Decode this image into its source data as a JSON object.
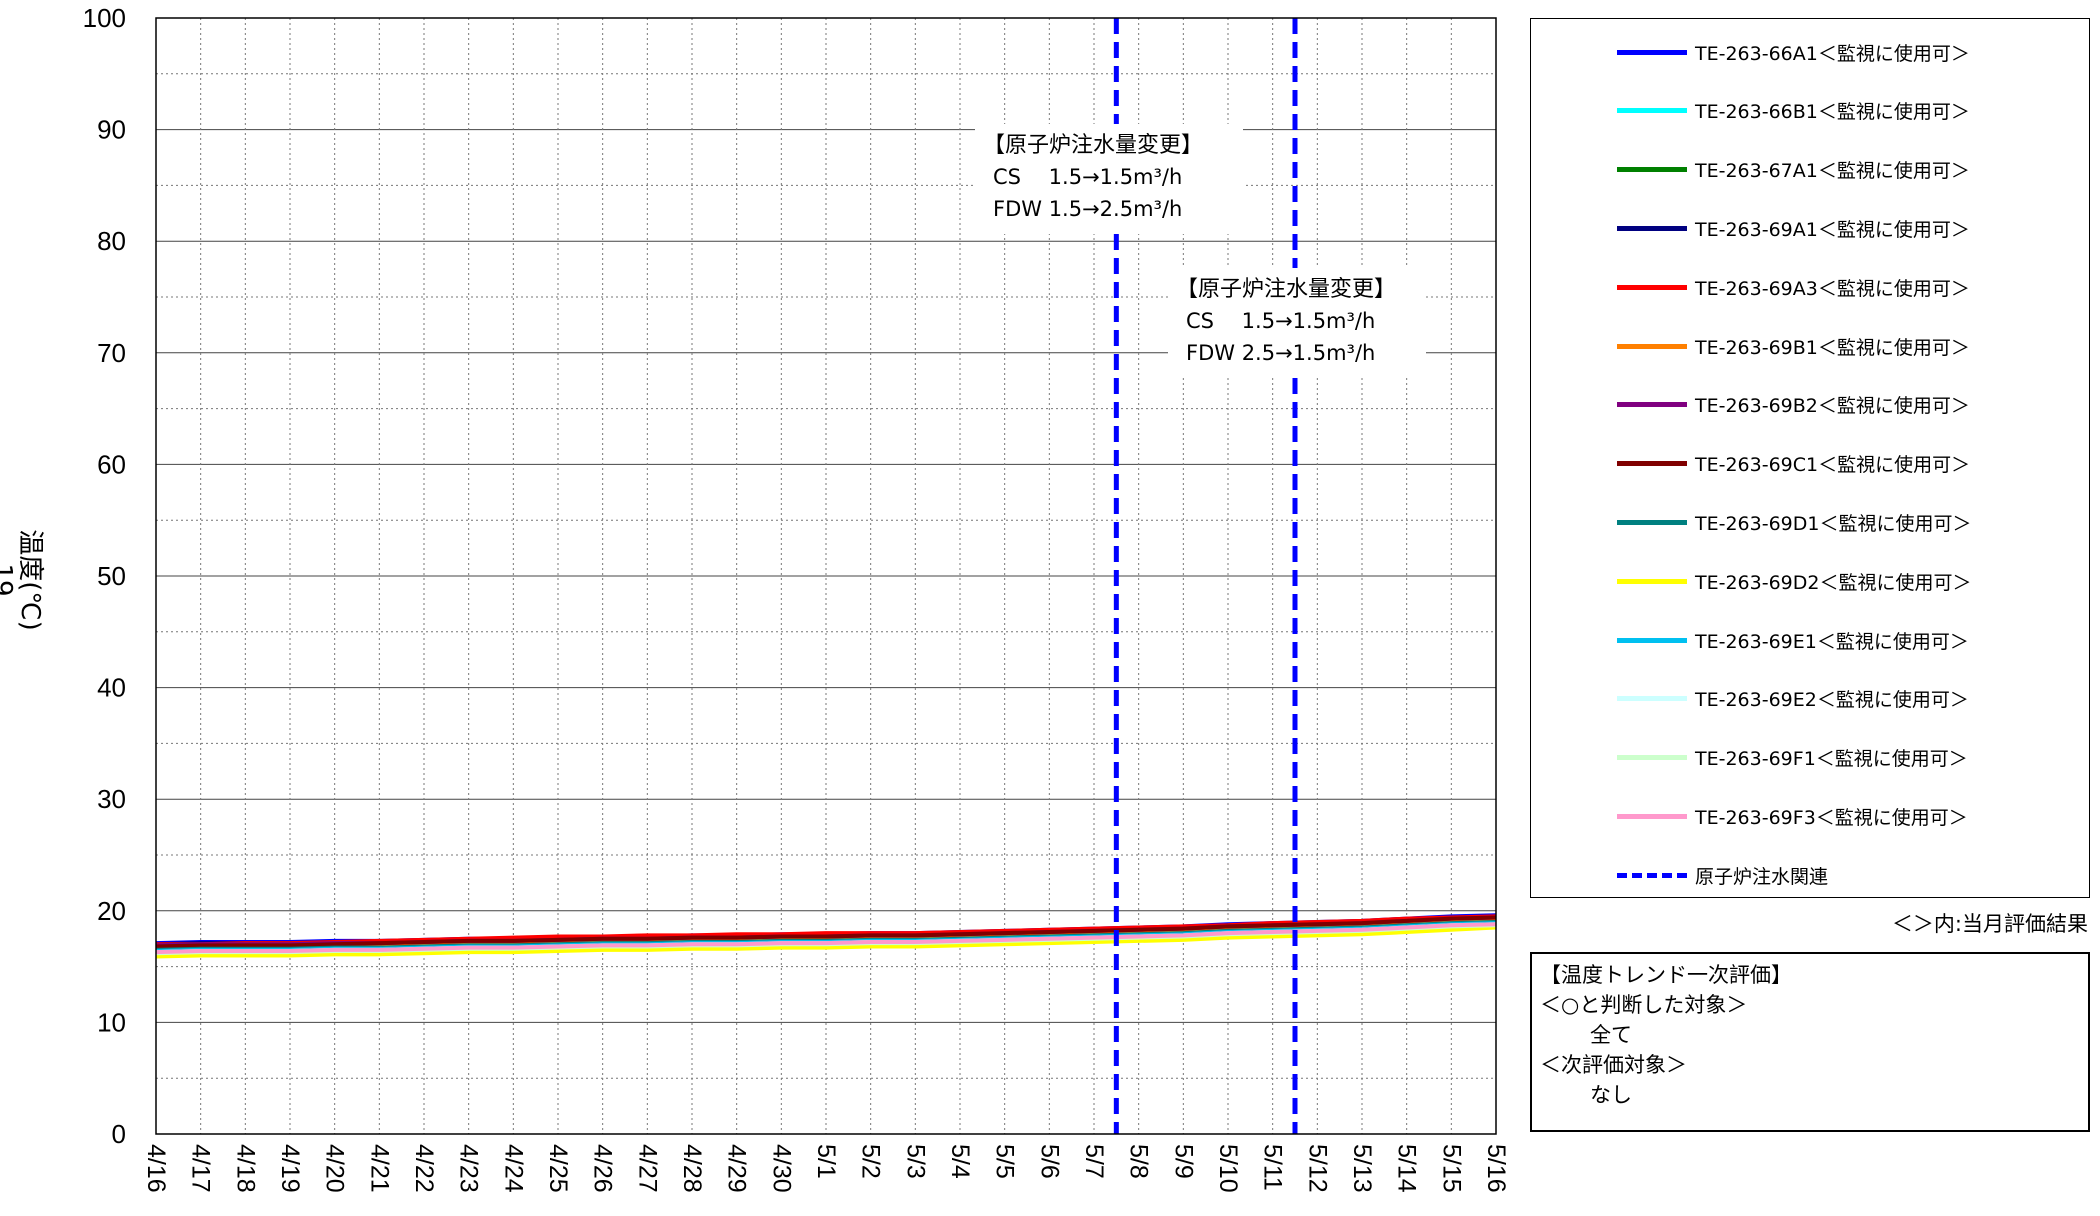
{
  "chart_data": {
    "type": "line",
    "ylabel": "温度(℃)",
    "ylabel_sub": "19",
    "ylim": [
      0,
      100
    ],
    "yticks": [
      0,
      10,
      20,
      30,
      40,
      50,
      60,
      70,
      80,
      90,
      100
    ],
    "grid": true,
    "x": [
      "4/16",
      "4/17",
      "4/18",
      "4/19",
      "4/20",
      "4/21",
      "4/22",
      "4/23",
      "4/24",
      "4/25",
      "4/26",
      "4/27",
      "4/28",
      "4/29",
      "4/30",
      "5/1",
      "5/2",
      "5/3",
      "5/4",
      "5/5",
      "5/6",
      "5/7",
      "5/8",
      "5/9",
      "5/10",
      "5/11",
      "5/12",
      "5/13",
      "5/14",
      "5/15",
      "5/16"
    ],
    "series": [
      {
        "name": "TE-263-66A1＜監視に使用可＞",
        "color": "#0000ff",
        "values": [
          17.1,
          17.2,
          17.2,
          17.2,
          17.3,
          17.3,
          17.4,
          17.5,
          17.5,
          17.6,
          17.7,
          17.7,
          17.8,
          17.8,
          17.9,
          17.9,
          18.0,
          18.0,
          18.1,
          18.2,
          18.3,
          18.4,
          18.5,
          18.6,
          18.8,
          18.9,
          19.0,
          19.1,
          19.3,
          19.5,
          19.6
        ]
      },
      {
        "name": "TE-263-66B1＜監視に使用可＞",
        "color": "#00ffff",
        "values": [
          16.6,
          16.7,
          16.7,
          16.7,
          16.8,
          16.8,
          16.9,
          17.0,
          17.0,
          17.1,
          17.2,
          17.2,
          17.3,
          17.3,
          17.4,
          17.4,
          17.5,
          17.5,
          17.6,
          17.7,
          17.8,
          17.9,
          18.0,
          18.1,
          18.3,
          18.4,
          18.5,
          18.6,
          18.8,
          19.0,
          19.1
        ]
      },
      {
        "name": "TE-263-67A1＜監視に使用可＞",
        "color": "#008000",
        "values": [
          16.8,
          16.9,
          16.9,
          16.9,
          17.0,
          17.0,
          17.1,
          17.2,
          17.2,
          17.3,
          17.4,
          17.4,
          17.5,
          17.5,
          17.6,
          17.6,
          17.7,
          17.7,
          17.8,
          17.9,
          18.0,
          18.1,
          18.2,
          18.3,
          18.5,
          18.6,
          18.7,
          18.8,
          19.0,
          19.2,
          19.3
        ]
      },
      {
        "name": "TE-263-69A1＜監視に使用可＞",
        "color": "#000080",
        "values": [
          17.0,
          17.1,
          17.1,
          17.1,
          17.2,
          17.2,
          17.3,
          17.4,
          17.4,
          17.5,
          17.6,
          17.6,
          17.7,
          17.7,
          17.8,
          17.8,
          17.9,
          17.9,
          18.0,
          18.1,
          18.2,
          18.3,
          18.4,
          18.5,
          18.7,
          18.8,
          18.9,
          19.0,
          19.2,
          19.4,
          19.5
        ]
      },
      {
        "name": "TE-263-69A3＜監視に使用可＞",
        "color": "#ff0000",
        "values": [
          17.0,
          17.0,
          17.1,
          17.1,
          17.2,
          17.3,
          17.4,
          17.5,
          17.6,
          17.7,
          17.7,
          17.8,
          17.8,
          17.9,
          17.9,
          18.0,
          18.0,
          18.0,
          18.1,
          18.2,
          18.3,
          18.4,
          18.5,
          18.6,
          18.7,
          18.9,
          19.0,
          19.1,
          19.3,
          19.4,
          19.5
        ]
      },
      {
        "name": "TE-263-69B1＜監視に使用可＞",
        "color": "#ff8000",
        "values": [
          16.7,
          16.8,
          16.8,
          16.8,
          16.9,
          16.9,
          17.0,
          17.1,
          17.1,
          17.2,
          17.3,
          17.3,
          17.4,
          17.4,
          17.5,
          17.5,
          17.6,
          17.6,
          17.7,
          17.8,
          17.9,
          18.0,
          18.1,
          18.2,
          18.4,
          18.5,
          18.6,
          18.7,
          18.9,
          19.1,
          19.2
        ]
      },
      {
        "name": "TE-263-69B2＜監視に使用可＞",
        "color": "#800080",
        "values": [
          16.9,
          17.0,
          17.0,
          17.0,
          17.1,
          17.1,
          17.2,
          17.3,
          17.3,
          17.4,
          17.5,
          17.5,
          17.6,
          17.6,
          17.7,
          17.7,
          17.8,
          17.8,
          17.9,
          18.0,
          18.1,
          18.2,
          18.3,
          18.4,
          18.6,
          18.7,
          18.8,
          18.9,
          19.1,
          19.3,
          19.4
        ]
      },
      {
        "name": "TE-263-69C1＜監視に使用可＞",
        "color": "#800000",
        "values": [
          16.8,
          16.9,
          16.9,
          16.9,
          17.0,
          17.1,
          17.2,
          17.3,
          17.3,
          17.4,
          17.5,
          17.5,
          17.6,
          17.6,
          17.7,
          17.7,
          17.8,
          17.8,
          17.9,
          18.0,
          18.1,
          18.2,
          18.3,
          18.4,
          18.6,
          18.7,
          18.8,
          18.9,
          19.1,
          19.3,
          19.4
        ]
      },
      {
        "name": "TE-263-69D1＜監視に使用可＞",
        "color": "#008080",
        "values": [
          16.5,
          16.6,
          16.6,
          16.6,
          16.7,
          16.7,
          16.8,
          16.9,
          16.9,
          17.0,
          17.1,
          17.1,
          17.2,
          17.2,
          17.3,
          17.3,
          17.4,
          17.4,
          17.5,
          17.6,
          17.7,
          17.8,
          17.9,
          18.0,
          18.2,
          18.3,
          18.4,
          18.5,
          18.7,
          18.9,
          19.0
        ]
      },
      {
        "name": "TE-263-69D2＜監視に使用可＞",
        "color": "#ffff00",
        "values": [
          15.9,
          16.0,
          16.0,
          16.0,
          16.1,
          16.1,
          16.2,
          16.3,
          16.3,
          16.4,
          16.5,
          16.5,
          16.6,
          16.6,
          16.7,
          16.7,
          16.8,
          16.8,
          16.9,
          17.0,
          17.1,
          17.2,
          17.3,
          17.4,
          17.6,
          17.7,
          17.8,
          17.9,
          18.1,
          18.3,
          18.5
        ]
      },
      {
        "name": "TE-263-69E1＜監視に使用可＞",
        "color": "#00c0f0",
        "values": [
          16.4,
          16.5,
          16.5,
          16.5,
          16.6,
          16.6,
          16.7,
          16.8,
          16.8,
          16.9,
          17.0,
          17.0,
          17.1,
          17.1,
          17.2,
          17.2,
          17.3,
          17.3,
          17.4,
          17.5,
          17.6,
          17.7,
          17.8,
          17.9,
          18.1,
          18.2,
          18.3,
          18.4,
          18.6,
          18.8,
          18.9
        ]
      },
      {
        "name": "TE-263-69E2＜監視に使用可＞",
        "color": "#ccffff",
        "values": [
          16.3,
          16.4,
          16.4,
          16.4,
          16.5,
          16.5,
          16.6,
          16.7,
          16.7,
          16.8,
          16.9,
          16.9,
          17.0,
          17.0,
          17.1,
          17.1,
          17.2,
          17.2,
          17.3,
          17.4,
          17.5,
          17.6,
          17.7,
          17.8,
          18.0,
          18.1,
          18.2,
          18.3,
          18.5,
          18.7,
          18.8
        ]
      },
      {
        "name": "TE-263-69F1＜監視に使用可＞",
        "color": "#ccffcc",
        "values": [
          16.2,
          16.3,
          16.3,
          16.3,
          16.4,
          16.4,
          16.5,
          16.6,
          16.6,
          16.7,
          16.8,
          16.8,
          16.9,
          16.9,
          17.0,
          17.0,
          17.1,
          17.1,
          17.2,
          17.3,
          17.4,
          17.5,
          17.6,
          17.7,
          17.9,
          18.0,
          18.1,
          18.2,
          18.4,
          18.6,
          18.7
        ]
      },
      {
        "name": "TE-263-69F3＜監視に使用可＞",
        "color": "#ff99cc",
        "values": [
          16.3,
          16.4,
          16.4,
          16.4,
          16.5,
          16.5,
          16.6,
          16.7,
          16.7,
          16.8,
          16.9,
          16.9,
          17.0,
          17.0,
          17.1,
          17.1,
          17.2,
          17.2,
          17.3,
          17.4,
          17.5,
          17.6,
          17.7,
          17.8,
          18.0,
          18.1,
          18.2,
          18.3,
          18.5,
          18.7,
          18.8
        ]
      }
    ],
    "event_series": {
      "name": "原子炉注水関連",
      "color": "#0000ff",
      "style": "dashed"
    },
    "event_lines": [
      {
        "x": 21.5,
        "label": "5/7-5/8"
      },
      {
        "x": 25.5,
        "label": "5/11-5/12"
      }
    ],
    "annotations": [
      {
        "title": "【原子炉注水量変更】",
        "line1": "CS　 1.5→1.5m³/h",
        "line2": "FDW  1.5→2.5m³/h"
      },
      {
        "title": "【原子炉注水量変更】",
        "line1": "CS　 1.5→1.5m³/h",
        "line2": "FDW  2.5→1.5m³/h"
      }
    ]
  },
  "legend_note": "＜＞内:当月評価結果",
  "evaluation": {
    "title": "【温度トレンド一次評価】",
    "ok_heading": "＜○と判断した対象＞",
    "ok_value": "全て",
    "next_heading": "＜次評価対象＞",
    "next_value": "なし"
  }
}
